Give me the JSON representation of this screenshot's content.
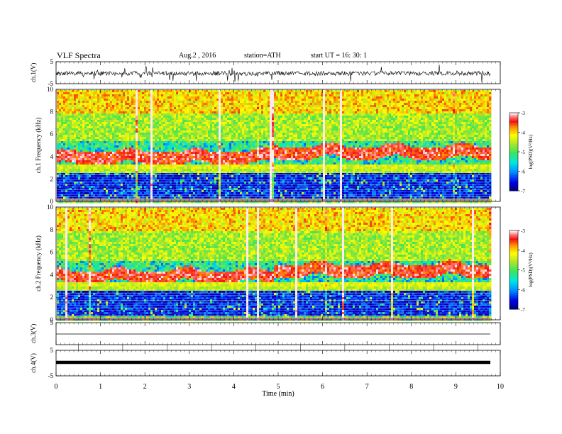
{
  "header": {
    "title": "VLF  Spectra",
    "date": "Aug.2  , 2016",
    "station": "station=ATH",
    "start_ut": "start  UT  =   16: 30: 1"
  },
  "chart_data": [
    {
      "type": "line",
      "ylabel": "ch.1(V)",
      "ylim": [
        -5,
        5
      ],
      "yticks": [
        "5",
        "-5"
      ],
      "description_series": "broadband waveform, dense noise around about 0 V with impulsive spikes"
    },
    {
      "type": "heatmap",
      "ylabel": "ch.1  Frequency  (kHz)",
      "ylim": [
        0,
        10
      ],
      "yticks": [
        "0",
        "2",
        "4",
        "6",
        "8",
        "10"
      ],
      "colorbar": {
        "label": "log(PSD)(V²/Hz)",
        "range": [
          -7,
          -3
        ],
        "ticks": [
          "-3",
          "-4",
          "-5",
          "-6",
          "-7"
        ]
      }
    },
    {
      "type": "heatmap",
      "ylabel": "ch.2  Frequency  (kHz)",
      "ylim": [
        0,
        10
      ],
      "yticks": [
        "0",
        "2",
        "4",
        "6",
        "8",
        "10"
      ],
      "colorbar": {
        "label": "log(PSD)(V²/Hz)",
        "range": [
          -7,
          -3
        ],
        "ticks": [
          "-3",
          "-4",
          "-5",
          "-6",
          "-7"
        ]
      }
    },
    {
      "type": "line",
      "ylabel": "ch.3(V)",
      "ylim": [
        -5,
        5
      ],
      "yticks": [
        "5"
      ],
      "values_note": "flat near 0 V"
    },
    {
      "type": "line",
      "ylabel": "ch.4(V)",
      "ylim": [
        -5,
        5
      ],
      "yticks": [
        "5",
        "-5"
      ],
      "values_note": "thick flat trace near 0 V"
    }
  ],
  "xaxis": {
    "label": "Time  (min)",
    "ticks": [
      "0",
      "1",
      "2",
      "3",
      "4",
      "5",
      "6",
      "7",
      "8",
      "9",
      "10"
    ],
    "xlim": [
      0,
      10
    ]
  }
}
